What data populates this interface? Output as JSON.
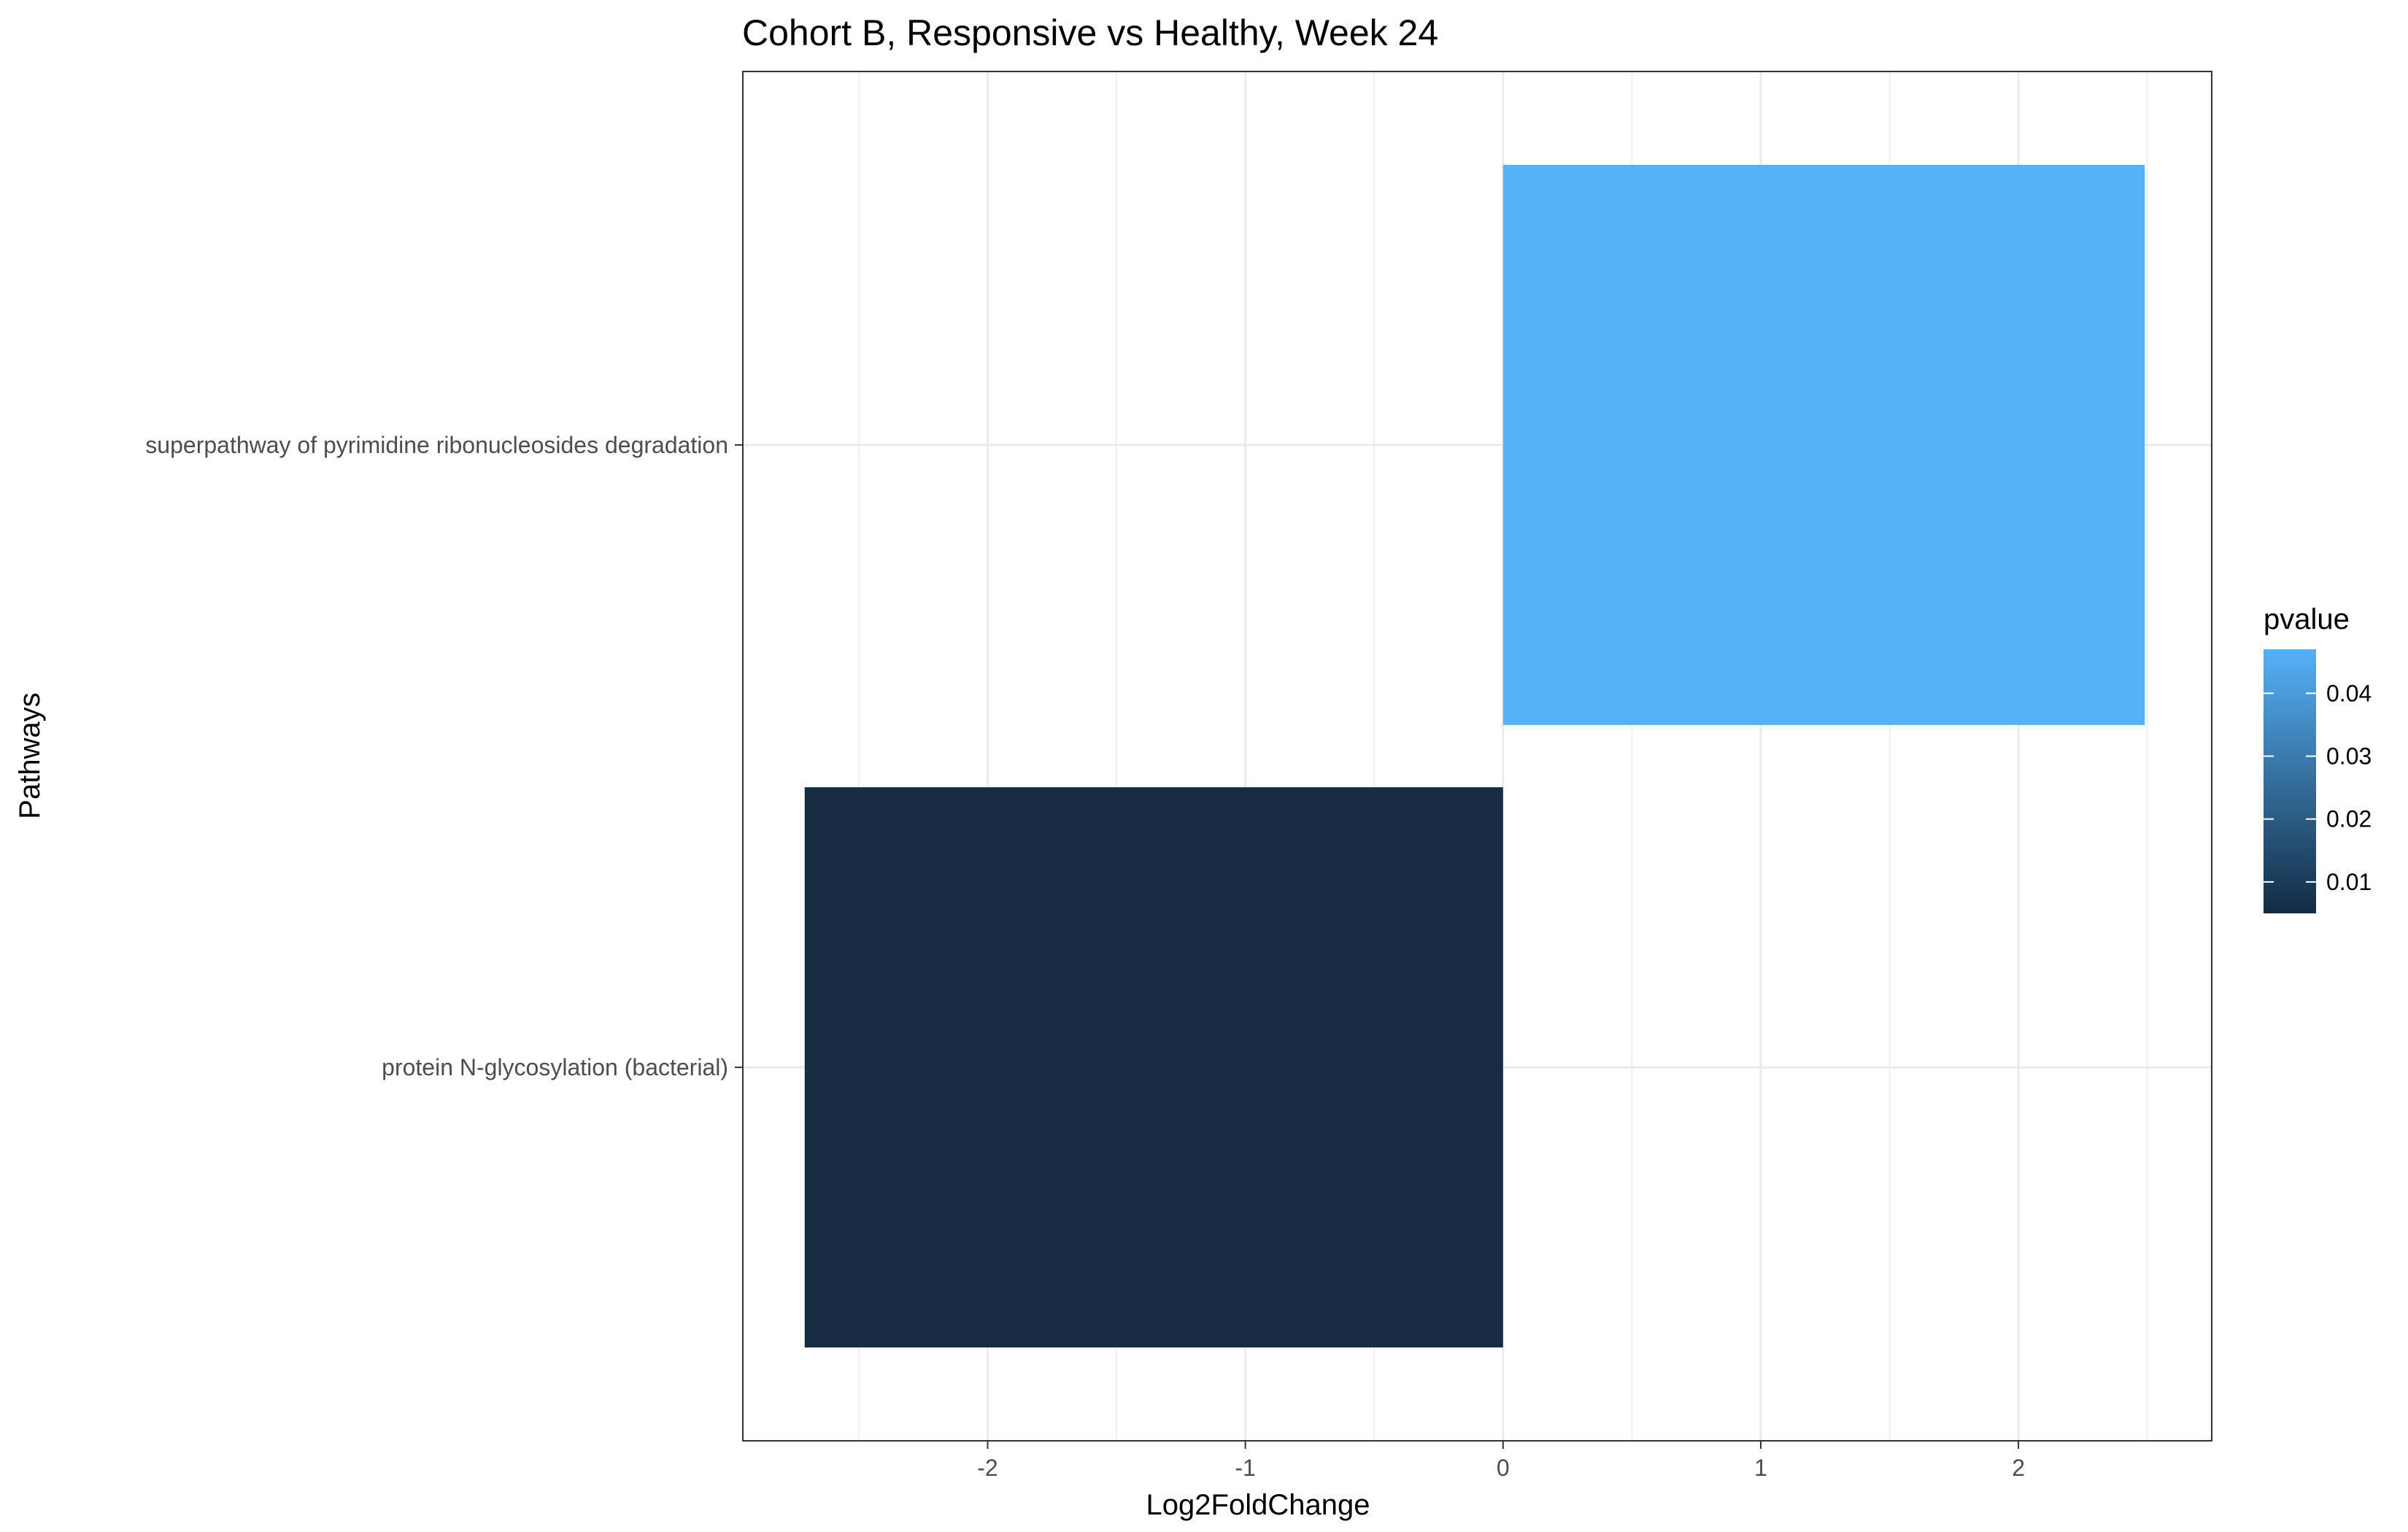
{
  "chart_data": {
    "type": "bar",
    "orientation": "horizontal",
    "title": "Cohort B, Responsive vs Healthy, Week 24",
    "xlabel": "Log2FoldChange",
    "ylabel": "Pathways",
    "xlim": [
      -2.95,
      2.75
    ],
    "x_ticks": [
      -2,
      -1,
      0,
      1,
      2
    ],
    "x_tick_labels": [
      "-2",
      "-1",
      "0",
      "1",
      "2"
    ],
    "categories": [
      "superpathway of pyrimidine ribonucleosides degradation",
      "protein N-glycosylation (bacterial)"
    ],
    "values": [
      2.49,
      -2.71
    ],
    "pvalues": [
      0.047,
      0.005
    ],
    "bar_colors": [
      "#56b1f7",
      "#172c43"
    ],
    "grid": true,
    "legend": {
      "title": "pvalue",
      "placement": "right",
      "type": "colorbar",
      "range": [
        0.005,
        0.047
      ],
      "ticks": [
        0.01,
        0.02,
        0.03,
        0.04
      ],
      "tick_labels": [
        "0.01",
        "0.02",
        "0.03",
        "0.04"
      ],
      "color_low": "#132b43",
      "color_high": "#56b1f7"
    }
  }
}
